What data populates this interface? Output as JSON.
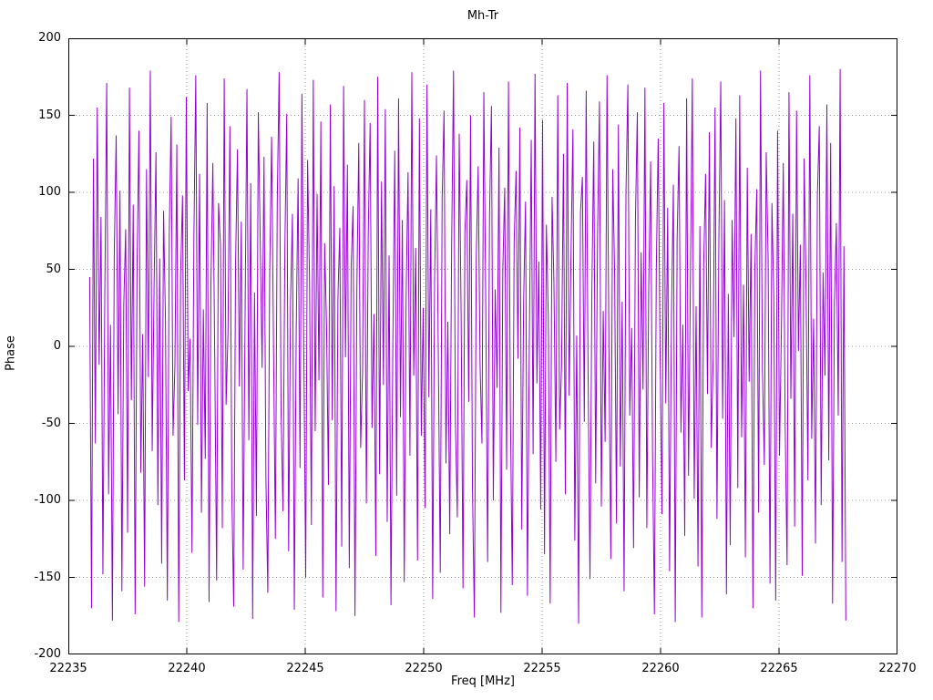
{
  "chart_data": {
    "type": "line",
    "title": "Mh-Tr",
    "xlabel": "Freq [MHz]",
    "ylabel": "Phase",
    "xlim": [
      22235,
      22270
    ],
    "ylim": [
      -200,
      200
    ],
    "x_ticks": [
      22235,
      22240,
      22245,
      22250,
      22255,
      22260,
      22265,
      22270
    ],
    "y_ticks": [
      -200,
      -150,
      -100,
      -50,
      0,
      50,
      100,
      150,
      200
    ],
    "grid": true,
    "legend_position": "none",
    "line_color": "#9400d3",
    "grid_color": "#999999",
    "border_color": "#000000",
    "series": [
      {
        "name": "Mh-Tr",
        "x_start": 22235.9,
        "x_step": 0.08,
        "values": [
          45,
          -170,
          122,
          -63,
          155,
          -12,
          84,
          -148,
          33,
          171,
          -96,
          14,
          -178,
          62,
          137,
          -44,
          101,
          -159,
          27,
          76,
          -121,
          168,
          -35,
          92,
          -174,
          51,
          140,
          -82,
          8,
          -156,
          115,
          -20,
          179,
          -68,
          39,
          126,
          -103,
          57,
          -141,
          88,
          17,
          -165,
          73,
          149,
          -58,
          -12,
          131,
          -179,
          46,
          98,
          -87,
          162,
          -29,
          5,
          -134,
          70,
          176,
          -51,
          112,
          -108,
          24,
          -73,
          158,
          -166,
          41,
          119,
          -6,
          -152,
          93,
          66,
          -118,
          174,
          -38,
          9,
          143,
          -94,
          -169,
          54,
          128,
          -26,
          81,
          -145,
          18,
          167,
          -61,
          106,
          -177,
          35,
          -110,
          152,
          69,
          -14,
          123,
          -85,
          -160,
          47,
          136,
          2,
          -125,
          95,
          178,
          -42,
          -107,
          63,
          151,
          -133,
          29,
          86,
          -171,
          11,
          109,
          -79,
          164,
          -3,
          -150,
          121,
          44,
          -116,
          173,
          -55,
          99,
          -22,
          146,
          -163,
          67,
          13,
          -90,
          157,
          -48,
          104,
          -172,
          31,
          77,
          -130,
          169,
          -7,
          118,
          -144,
          52,
          91,
          -175,
          38,
          132,
          -66,
          -16,
          160,
          -102,
          72,
          145,
          -53,
          21,
          -136,
          175,
          -83,
          107,
          -25,
          154,
          -114,
          59,
          -168,
          4,
          127,
          -97,
          161,
          -46,
          82,
          -153,
          34,
          113,
          -71,
          178,
          -19,
          64,
          -139,
          148,
          -58,
          25,
          -105,
          170,
          -33,
          89,
          -164,
          42,
          124,
          -9,
          -147,
          96,
          153,
          -76,
          16,
          -122,
          65,
          179,
          -50,
          -111,
          138,
          22,
          -157,
          74,
          108,
          -36,
          150,
          -93,
          -176,
          58,
          117,
          -11,
          -63,
          165,
          28,
          -140,
          85,
          156,
          -100,
          37,
          -27,
          129,
          -173,
          49,
          103,
          -80,
          172,
          -41,
          -155,
          68,
          114,
          -8,
          142,
          -119,
          30,
          94,
          -162,
          3,
          134,
          -70,
          177,
          -24,
          55,
          -106,
          147,
          -135,
          79,
          19,
          -167,
          97,
          40,
          -75,
          163,
          -54,
          -13,
          125,
          -96,
          171,
          -32,
          60,
          141,
          -126,
          7,
          -180,
          87,
          110,
          -49,
          166,
          -17,
          -151,
          36,
          133,
          -89,
          72,
          159,
          -104,
          23,
          -62,
          176,
          -1,
          -138,
          115,
          48,
          -115,
          144,
          -78,
          29,
          -159,
          100,
          170,
          -45,
          12,
          -131,
          83,
          152,
          -98,
          61,
          -28,
          168,
          -118,
          39,
          120,
          -69,
          -174,
          50,
          135,
          -5,
          -109,
          158,
          -37,
          90,
          -146,
          20,
          105,
          -179,
          71,
          130,
          -56,
          14,
          -123,
          161,
          -84,
          43,
          174,
          -99,
          26,
          -143,
          78,
          -176,
          53,
          112,
          -31,
          139,
          -66,
          -8,
          155,
          -112,
          67,
          172,
          -47,
          95,
          -161,
          34,
          -129,
          82,
          6,
          148,
          -92,
          163,
          -59,
          40,
          -137,
          116,
          -23,
          73,
          -170,
          51,
          102,
          -108,
          179,
          -15,
          -77,
          126,
          57,
          -154,
          93,
          31,
          -165,
          140,
          -71,
          10,
          119,
          -52,
          -142,
          165,
          -34,
          86,
          -117,
          153,
          -3,
          66,
          -149,
          122,
          41,
          -87,
          176,
          -60,
          18,
          -128,
          98,
          143,
          -103,
          48,
          -19,
          157,
          -74,
          132,
          -167,
          28,
          80,
          -45,
          180,
          -140,
          65,
          -178
        ]
      }
    ]
  }
}
